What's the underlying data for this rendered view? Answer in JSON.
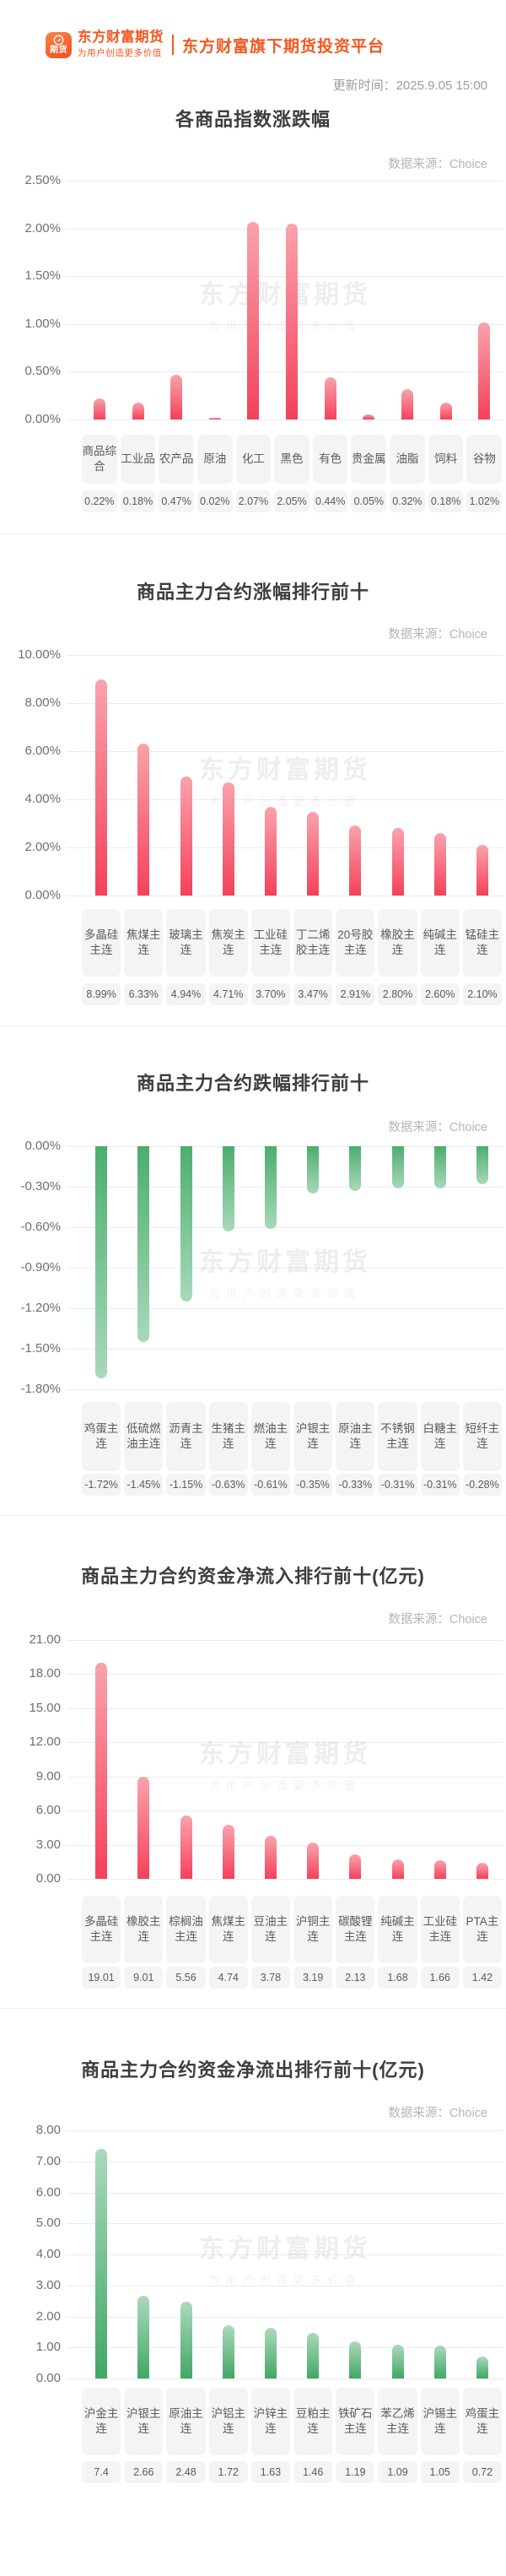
{
  "header": {
    "logo_badge_text": "期货",
    "brand_name": "东方财富期货",
    "brand_slogan": "为用户创造更多价值",
    "platform_title": "东方财富旗下期货投资平台",
    "update_time": "更新时间：2025.9.05 15:00",
    "brand_color": "#f4581f"
  },
  "watermark": {
    "line1": "东方财富期货",
    "line2": "为用户创造更多价值"
  },
  "colors": {
    "up_bar_top": "#f9a3ad",
    "up_bar_bottom": "#f4415a",
    "down_bar_top": "#4bae6e",
    "down_bar_bottom": "#a9d8ba",
    "grid_line": "#ececec",
    "badge_bg": "#f4f4f5",
    "badge_text": "#5b5b5d",
    "title_text": "#3d3d3d",
    "axis_text": "#6f6f6f",
    "source_text": "#b5b5b5"
  },
  "chart_data": [
    {
      "type": "bar",
      "title": "各商品指数涨跌幅",
      "source": "数据来源：Choice",
      "categories": [
        "商品综合",
        "工业品",
        "农产品",
        "原油",
        "化工",
        "黑色",
        "有色",
        "贵金属",
        "油脂",
        "饲料",
        "谷物"
      ],
      "values": [
        0.22,
        0.18,
        0.47,
        0.02,
        2.07,
        2.05,
        0.44,
        0.05,
        0.32,
        0.18,
        1.02
      ],
      "value_labels": [
        "0.22%",
        "0.18%",
        "0.47%",
        "0.02%",
        "2.07%",
        "2.05%",
        "0.44%",
        "0.05%",
        "0.32%",
        "0.18%",
        "1.02%"
      ],
      "ylim": [
        0,
        2.5
      ],
      "yticks": [
        {
          "v": 2.5,
          "label": "2.50%"
        },
        {
          "v": 2.0,
          "label": "2.00%"
        },
        {
          "v": 1.5,
          "label": "1.50%"
        },
        {
          "v": 1.0,
          "label": "1.00%"
        },
        {
          "v": 0.5,
          "label": "0.50%"
        },
        {
          "v": 0,
          "label": "0.00%"
        }
      ],
      "bar_style": "red-up",
      "grid": true,
      "legend": "none"
    },
    {
      "type": "bar",
      "title": "商品主力合约涨幅排行前十",
      "source": "数据来源：Choice",
      "categories": [
        "多晶硅主连",
        "焦煤主连",
        "玻璃主连",
        "焦炭主连",
        "工业硅主连",
        "丁二烯胶主连",
        "20号胶主连",
        "橡胶主连",
        "纯碱主连",
        "锰硅主连"
      ],
      "values": [
        8.99,
        6.33,
        4.94,
        4.71,
        3.7,
        3.47,
        2.91,
        2.8,
        2.6,
        2.1
      ],
      "value_labels": [
        "8.99%",
        "6.33%",
        "4.94%",
        "4.71%",
        "3.70%",
        "3.47%",
        "2.91%",
        "2.80%",
        "2.60%",
        "2.10%"
      ],
      "ylim": [
        0,
        10
      ],
      "yticks": [
        {
          "v": 10,
          "label": "10.00%"
        },
        {
          "v": 8,
          "label": "8.00%"
        },
        {
          "v": 6,
          "label": "6.00%"
        },
        {
          "v": 4,
          "label": "4.00%"
        },
        {
          "v": 2,
          "label": "2.00%"
        },
        {
          "v": 0,
          "label": "0.00%"
        }
      ],
      "bar_style": "red-up",
      "grid": true,
      "legend": "none"
    },
    {
      "type": "bar",
      "title": "商品主力合约跌幅排行前十",
      "source": "数据来源：Choice",
      "categories": [
        "鸡蛋主连",
        "低硫燃油主连",
        "沥青主连",
        "生猪主连",
        "燃油主连",
        "沪银主连",
        "原油主连",
        "不锈钢主连",
        "白糖主连",
        "短纤主连"
      ],
      "values": [
        -1.72,
        -1.45,
        -1.15,
        -0.63,
        -0.61,
        -0.35,
        -0.33,
        -0.31,
        -0.31,
        -0.28
      ],
      "value_labels": [
        "-1.72%",
        "-1.45%",
        "-1.15%",
        "-0.63%",
        "-0.61%",
        "-0.35%",
        "-0.33%",
        "-0.31%",
        "-0.31%",
        "-0.28%"
      ],
      "ylim": [
        -1.8,
        0
      ],
      "yticks": [
        {
          "v": 0,
          "label": "0.00%"
        },
        {
          "v": -0.3,
          "label": "-0.30%"
        },
        {
          "v": -0.6,
          "label": "-0.60%"
        },
        {
          "v": -0.9,
          "label": "-0.90%"
        },
        {
          "v": -1.2,
          "label": "-1.20%"
        },
        {
          "v": -1.5,
          "label": "-1.50%"
        },
        {
          "v": -1.8,
          "label": "-1.80%"
        }
      ],
      "bar_style": "green-down",
      "grid": true,
      "legend": "none"
    },
    {
      "type": "bar",
      "title": "商品主力合约资金净流入排行前十(亿元)",
      "source": "数据来源：Choice",
      "categories": [
        "多晶硅主连",
        "橡胶主连",
        "棕榈油主连",
        "焦煤主连",
        "豆油主连",
        "沪铜主连",
        "碳酸锂主连",
        "纯碱主连",
        "工业硅主连",
        "PTA主连"
      ],
      "values": [
        19.01,
        9.01,
        5.56,
        4.74,
        3.78,
        3.19,
        2.13,
        1.68,
        1.66,
        1.42
      ],
      "value_labels": [
        "19.01",
        "9.01",
        "5.56",
        "4.74",
        "3.78",
        "3.19",
        "2.13",
        "1.68",
        "1.66",
        "1.42"
      ],
      "ylim": [
        0,
        21
      ],
      "yticks": [
        {
          "v": 21,
          "label": "21.00"
        },
        {
          "v": 18,
          "label": "18.00"
        },
        {
          "v": 15,
          "label": "15.00"
        },
        {
          "v": 12,
          "label": "12.00"
        },
        {
          "v": 9,
          "label": "9.00"
        },
        {
          "v": 6,
          "label": "6.00"
        },
        {
          "v": 3,
          "label": "3.00"
        },
        {
          "v": 0,
          "label": "0.00"
        }
      ],
      "bar_style": "red-up",
      "grid": true,
      "legend": "none"
    },
    {
      "type": "bar",
      "title": "商品主力合约资金净流出排行前十(亿元)",
      "source": "数据来源：Choice",
      "categories": [
        "沪金主连",
        "沪银主连",
        "原油主连",
        "沪铝主连",
        "沪锌主连",
        "豆粕主连",
        "铁矿石主连",
        "苯乙烯主连",
        "沪锡主连",
        "鸡蛋主连"
      ],
      "values": [
        7.4,
        2.66,
        2.48,
        1.72,
        1.63,
        1.46,
        1.19,
        1.09,
        1.05,
        0.72
      ],
      "value_labels": [
        "7.4",
        "2.66",
        "2.48",
        "1.72",
        "1.63",
        "1.46",
        "1.19",
        "1.09",
        "1.05",
        "0.72"
      ],
      "ylim": [
        0,
        8
      ],
      "yticks": [
        {
          "v": 8,
          "label": "8.00"
        },
        {
          "v": 7,
          "label": "7.00"
        },
        {
          "v": 6,
          "label": "6.00"
        },
        {
          "v": 5,
          "label": "5.00"
        },
        {
          "v": 4,
          "label": "4.00"
        },
        {
          "v": 3,
          "label": "3.00"
        },
        {
          "v": 2,
          "label": "2.00"
        },
        {
          "v": 1,
          "label": "1.00"
        },
        {
          "v": 0,
          "label": "0.00"
        }
      ],
      "bar_style": "green-up",
      "grid": true,
      "legend": "none"
    }
  ]
}
